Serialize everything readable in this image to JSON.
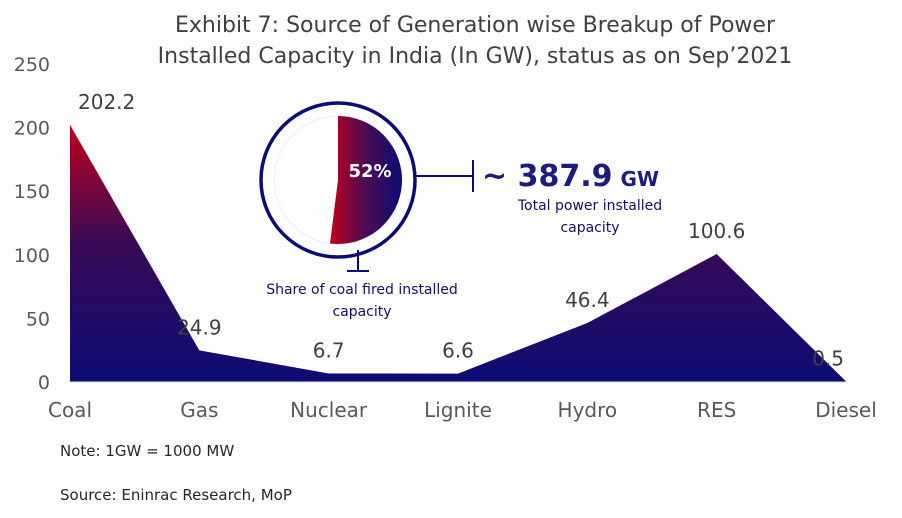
{
  "chart_data": {
    "type": "area",
    "title_lines": [
      "Exhibit 7: Source of Generation wise Breakup of Power",
      "Installed Capacity in India (In GW), status as on Sep’2021"
    ],
    "categories": [
      "Coal",
      "Gas",
      "Nuclear",
      "Lignite",
      "Hydro",
      "RES",
      "Diesel"
    ],
    "values": [
      202.2,
      24.9,
      6.7,
      6.6,
      46.4,
      100.6,
      0.5
    ],
    "data_labels": [
      "202.2",
      "24.9",
      "6.7",
      "6.6",
      "46.4",
      "100.6",
      "0.5"
    ],
    "ylim": [
      0,
      250
    ],
    "yticks": [
      "0",
      "50",
      "100",
      "150",
      "200",
      "250"
    ],
    "grid": false,
    "colors": {
      "top": "#c0001a",
      "bottom": "#0c0c73",
      "ring": "#0c0c73"
    }
  },
  "inset": {
    "share_value": 52,
    "share_label": "52%",
    "total_value": "~ 387.9",
    "total_unit": "GW",
    "total_caption_lines": [
      "Total power installed",
      "capacity"
    ],
    "share_caption_lines": [
      "Share of coal fired installed",
      "capacity"
    ]
  },
  "notes": {
    "note": "Note: 1GW = 1000 MW",
    "source": "Source: Eninrac Research, MoP"
  }
}
